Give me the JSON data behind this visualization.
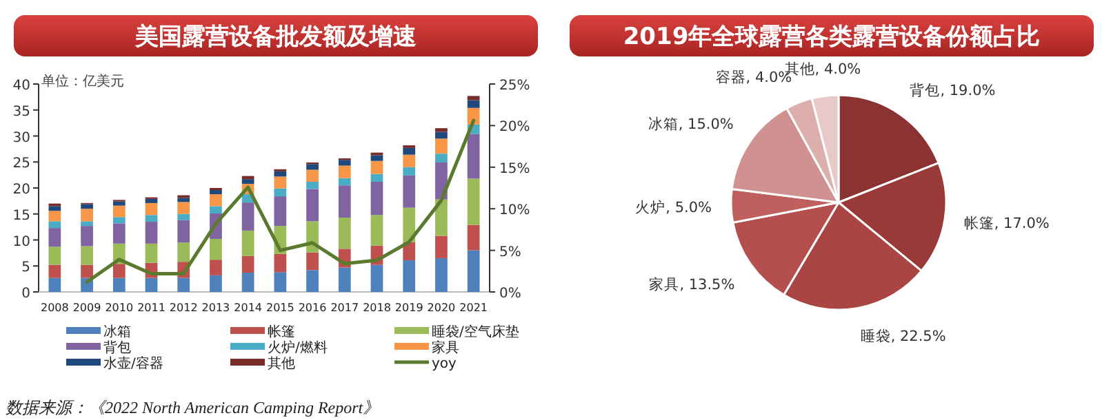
{
  "chart_data": [
    {
      "type": "bar",
      "stacked": true,
      "title": "美国露营设备批发额及增速",
      "categories": [
        "2008",
        "2009",
        "2010",
        "2011",
        "2012",
        "2013",
        "2014",
        "2015",
        "2016",
        "2017",
        "2018",
        "2019",
        "2020",
        "2021"
      ],
      "series": [
        {
          "name": "冰箱",
          "color": "#4f81bd",
          "values": [
            2.7,
            2.7,
            2.7,
            2.7,
            2.7,
            3.2,
            3.7,
            3.8,
            4.2,
            4.7,
            5.2,
            6.1,
            6.5,
            8.0
          ]
        },
        {
          "name": "帐篷",
          "color": "#c0504d",
          "values": [
            2.5,
            2.5,
            2.7,
            2.9,
            3.1,
            3.0,
            3.2,
            3.5,
            3.4,
            3.6,
            3.7,
            3.5,
            4.3,
            4.9
          ]
        },
        {
          "name": "睡袋/空气床垫",
          "color": "#9bbb59",
          "values": [
            3.5,
            3.6,
            3.9,
            3.7,
            3.7,
            4.0,
            4.9,
            5.4,
            6.0,
            6.0,
            5.9,
            6.6,
            7.0,
            8.9
          ]
        },
        {
          "name": "背包",
          "color": "#8064a2",
          "values": [
            3.6,
            3.9,
            3.9,
            4.2,
            4.3,
            4.9,
            5.4,
            5.7,
            6.2,
            6.2,
            6.4,
            6.2,
            7.1,
            8.6
          ]
        },
        {
          "name": "火炉/燃料",
          "color": "#4bacc6",
          "values": [
            1.3,
            0.9,
            1.2,
            1.3,
            1.2,
            1.4,
            1.6,
            1.5,
            1.4,
            1.4,
            1.5,
            1.6,
            1.7,
            1.8
          ]
        },
        {
          "name": "家具",
          "color": "#f79646",
          "values": [
            2.0,
            2.4,
            2.2,
            2.3,
            2.3,
            2.3,
            2.0,
            2.3,
            2.3,
            2.4,
            2.5,
            2.4,
            2.9,
            3.2
          ]
        },
        {
          "name": "水壶/容器",
          "color": "#1f497d",
          "values": [
            0.9,
            0.9,
            0.8,
            0.8,
            0.8,
            0.8,
            0.9,
            1.0,
            1.1,
            1.1,
            1.1,
            1.3,
            1.3,
            1.5
          ]
        },
        {
          "name": "其他",
          "color": "#772c2a",
          "values": [
            0.5,
            0.2,
            0.3,
            0.3,
            0.5,
            0.4,
            0.6,
            0.4,
            0.3,
            0.3,
            0.5,
            0.5,
            0.7,
            0.8
          ]
        },
        {
          "name": "yoy",
          "type": "line",
          "axis": "y2",
          "color": "#5a7a2e",
          "values": [
            null,
            1.2,
            3.9,
            2.2,
            2.2,
            8.2,
            12.6,
            5.0,
            5.9,
            3.4,
            3.8,
            6.0,
            11.0,
            20.6
          ]
        }
      ],
      "ylim": [
        0,
        40
      ],
      "yticks": [
        0,
        5,
        10,
        15,
        20,
        25,
        30,
        35,
        40
      ],
      "y2lim": [
        0,
        25
      ],
      "y2ticks": [
        {
          "value": 0,
          "label": "0%"
        },
        {
          "value": 5,
          "label": "5%"
        },
        {
          "value": 10,
          "label": "10%"
        },
        {
          "value": 15,
          "label": "15%"
        },
        {
          "value": 20,
          "label": "20%"
        },
        {
          "value": 25,
          "label": "25%"
        }
      ],
      "legend": "bottom",
      "annotations": [
        "单位：亿美元",
        "数据来源：《2022 North American Camping Report》"
      ]
    },
    {
      "type": "pie",
      "title": "2019年全球露营各类露营设备份额占比",
      "categories": [
        "背包",
        "帐篷",
        "睡袋",
        "家具",
        "火炉",
        "冰箱",
        "容器",
        "其他"
      ],
      "values": [
        19,
        17,
        22.5,
        13.5,
        5,
        15,
        4,
        4
      ],
      "value_labels": [
        "19.0%",
        "17.0%",
        "22.5%",
        "13.5%",
        "5.0%",
        "15.0%",
        "4.0%",
        "4.0%"
      ],
      "colors": [
        "#8b3332",
        "#9a3a38",
        "#a94543",
        "#b44f4d",
        "#c0605e",
        "#d09290",
        "#dcaeac",
        "#e7c9c8"
      ]
    }
  ]
}
